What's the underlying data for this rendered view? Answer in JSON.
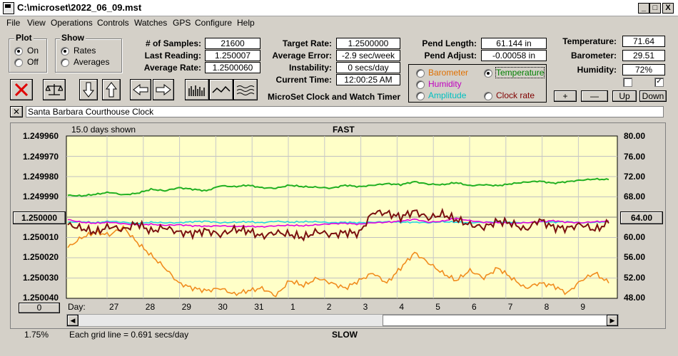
{
  "window": {
    "title": "C:\\microset\\2022_06_09.mst",
    "minimize": "_",
    "maximize": "□",
    "close": "X"
  },
  "menu": [
    "File",
    "View",
    "Operations",
    "Controls",
    "Watches",
    "GPS",
    "Configure",
    "Help"
  ],
  "plot_group": {
    "label": "Plot",
    "options": [
      "On",
      "Off"
    ],
    "selected": 0
  },
  "show_group": {
    "label": "Show",
    "options": [
      "Rates",
      "Averages"
    ],
    "selected": 0
  },
  "stats": {
    "samples_label": "# of Samples:",
    "samples": "21600",
    "last_label": "Last Reading:",
    "last": "1.250007",
    "avg_rate_label": "Average Rate:",
    "avg_rate": "1.2500060",
    "target_label": "Target Rate:",
    "target": "1.2500000",
    "avg_err_label": "Average Error:",
    "avg_err": "-2.9 sec/week",
    "instab_label": "Instability:",
    "instab": "0 secs/day",
    "time_label": "Current Time:",
    "time": "12:00:25 AM",
    "pend_len_label": "Pend Length:",
    "pend_len": "61.144 in",
    "pend_adj_label": "Pend Adjust:",
    "pend_adj": "-0.00058 in",
    "temp_label": "Temperature:",
    "temp": "71.64",
    "baro_label": "Barometer:",
    "baro": "29.51",
    "hum_label": "Humidity:",
    "hum": "72%"
  },
  "app_title": "MicroSet Clock and Watch Timer",
  "sensor_select": {
    "items": [
      {
        "label": "Barometer",
        "color": "#e07000"
      },
      {
        "label": "Temperature",
        "color": "#008000"
      },
      {
        "label": "Humidity",
        "color": "#c000c0"
      },
      {
        "label": "Amplitude",
        "color": "#00c0c0"
      },
      {
        "label": "Clock rate",
        "color": "#800000"
      }
    ],
    "selected": "Temperature"
  },
  "sensor_buttons": {
    "plus": "+",
    "minus": "—",
    "up": "Up",
    "down": "Down"
  },
  "checkboxes": [
    false,
    true
  ],
  "clock_name": "Santa Barbara Courthouse Clock",
  "clear_label": "✕",
  "chart": {
    "top_left": "15.0 days shown",
    "top_center": "FAST",
    "bottom_center": "SLOW",
    "bottom_note": "Each grid line = 0.691 secs/day",
    "corner_percent": "1.75%",
    "left_button": "1.250000",
    "left_button_low": "0",
    "right_button": "64.00",
    "day_label": "Day:"
  },
  "chart_data": {
    "type": "line",
    "x_tick_labels": [
      "27",
      "28",
      "29",
      "30",
      "31",
      "1",
      "2",
      "3",
      "4",
      "5",
      "6",
      "7",
      "8",
      "9"
    ],
    "y_left_ticks": [
      "1.249960",
      "1.249970",
      "1.249980",
      "1.249990",
      "",
      "1.250010",
      "1.250020",
      "1.250030",
      "1.250040"
    ],
    "y_right_ticks": [
      "80.00",
      "76.00",
      "72.00",
      "68.00",
      "",
      "60.00",
      "56.00",
      "52.00",
      "48.00"
    ],
    "ylim_left": [
      1.24996,
      1.25004
    ],
    "ylim_right": [
      48,
      80
    ],
    "grid": true,
    "background": "#ffffc8",
    "series": [
      {
        "name": "Temperature",
        "color": "#22b022",
        "values": [
          68.3,
          68.2,
          68.5,
          68.9,
          68.4,
          68.7,
          69.5,
          69.2,
          69.8,
          69.5,
          69.2,
          70.2,
          70.0,
          70.3,
          69.8,
          69.7,
          70.3,
          70.0,
          69.9,
          69.7,
          70.3,
          70.0,
          70.3,
          70.6,
          70.4,
          71.0,
          70.5,
          70.4,
          70.8,
          70.2,
          70.4,
          70.2,
          70.6,
          70.9,
          71.1,
          70.7,
          71.0,
          71.3,
          71.5,
          71.4
        ]
      },
      {
        "name": "Humidity",
        "color": "#e000e0",
        "values": [
          63.5,
          63.0,
          62.8,
          63.0,
          62.7,
          62.5,
          62.6,
          62.4,
          62.5,
          62.3,
          62.2,
          62.3,
          62.2,
          62.2,
          62.1,
          62.3,
          62.4,
          62.3,
          62.5,
          62.7,
          62.8,
          62.6,
          62.9,
          63.0,
          63.2,
          63.6,
          63.0,
          63.2,
          63.8,
          63.3,
          63.0,
          62.9,
          62.8,
          62.9,
          63.1,
          63.3,
          63.0,
          62.9,
          63.1,
          63.2
        ]
      },
      {
        "name": "Amplitude",
        "color": "#22d4e0",
        "values": [
          63.0,
          63.1,
          62.9,
          63.2,
          63.0,
          62.8,
          63.0,
          62.9,
          62.9,
          63.1,
          63.2,
          62.9,
          63.0,
          63.1,
          62.9,
          63.2,
          63.0,
          63.1,
          63.1,
          62.9,
          63.0,
          62.9,
          63.0,
          63.1,
          63.0,
          63.0,
          62.9,
          63.1,
          63.0,
          62.9,
          63.0,
          63.1,
          63.0,
          62.9,
          63.1,
          63.0,
          63.1,
          62.9,
          63.0,
          63.1
        ]
      },
      {
        "name": "Barometer",
        "color": "#f08c1e",
        "values": [
          58.0,
          60.0,
          61.0,
          60.5,
          62.0,
          59.0,
          56.5,
          54.0,
          51.0,
          50.0,
          49.5,
          50.0,
          48.8,
          49.5,
          50.0,
          48.5,
          51.5,
          50.5,
          52.0,
          51.0,
          50.0,
          51.5,
          53.0,
          51.0,
          54.0,
          57.0,
          55.0,
          53.0,
          51.5,
          53.5,
          52.0,
          54.0,
          52.0,
          50.0,
          51.0,
          50.5,
          49.0,
          51.5,
          53.0,
          51.0
        ]
      },
      {
        "name": "Clock rate",
        "color": "#7a1010",
        "values": [
          62.5,
          61.8,
          61.0,
          62.2,
          61.5,
          62.8,
          61.2,
          62.0,
          61.0,
          60.8,
          61.4,
          60.5,
          61.6,
          61.3,
          60.2,
          61.0,
          60.6,
          60.0,
          61.2,
          60.5,
          61.0,
          60.8,
          65.0,
          64.8,
          64.0,
          65.2,
          63.8,
          64.6,
          63.5,
          62.5,
          62.0,
          63.2,
          62.8,
          61.5,
          63.5,
          62.0,
          61.8,
          62.6,
          61.5,
          62.8
        ]
      }
    ]
  }
}
